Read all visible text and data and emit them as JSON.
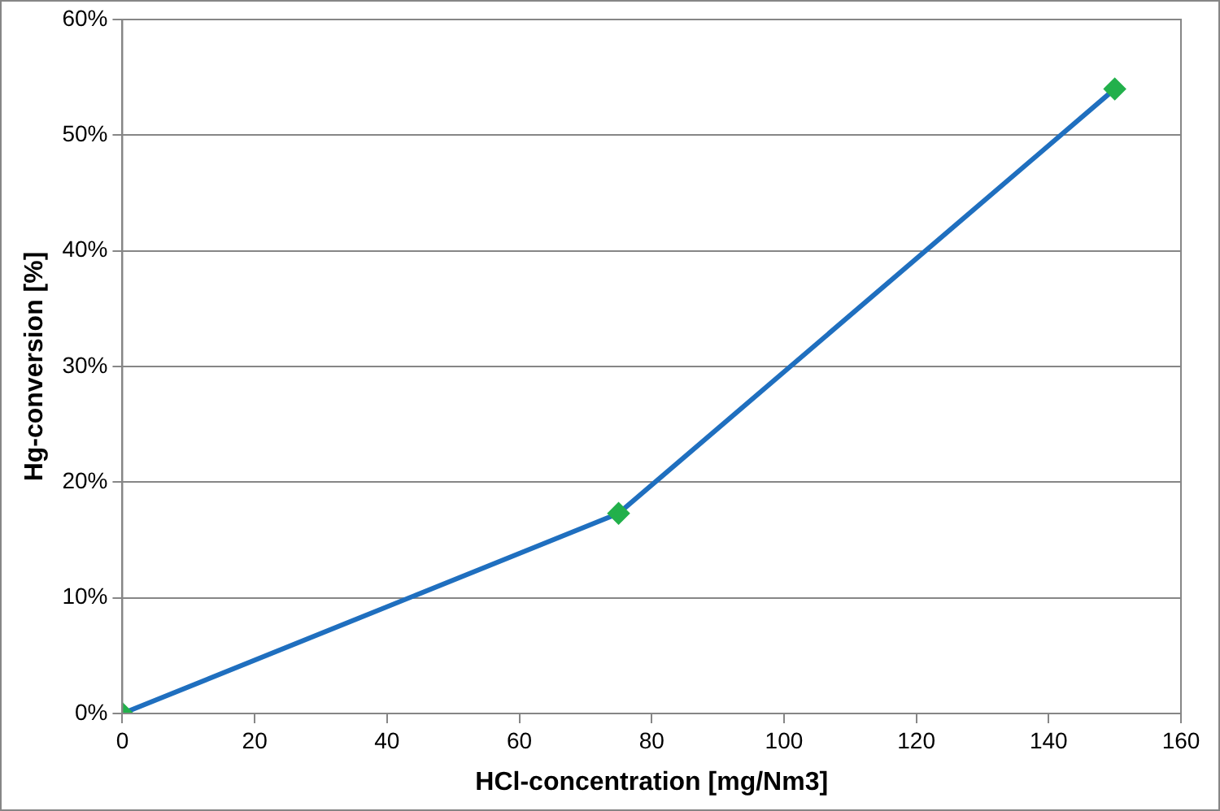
{
  "chart_data": {
    "type": "line",
    "xlabel": "HCl-concentration [mg/Nm3]",
    "ylabel": "Hg-conversion [%]",
    "x": [
      0,
      75,
      150
    ],
    "series": [
      {
        "color": "#1f6fbf",
        "colors": [
          "#22b04b",
          "#22b04b",
          "#22b04b"
        ],
        "values": [
          0,
          17.3,
          54
        ]
      }
    ],
    "xlim": [
      0,
      160
    ],
    "xticks": [
      0,
      20,
      40,
      60,
      80,
      100,
      120,
      140,
      160
    ],
    "ylim": [
      0,
      60
    ],
    "yticks": [
      {
        "value": 0,
        "label": "0%"
      },
      {
        "value": 10,
        "label": "10%"
      },
      {
        "value": 20,
        "label": "20%"
      },
      {
        "value": 30,
        "label": "30%"
      },
      {
        "value": 40,
        "label": "40%"
      },
      {
        "value": 50,
        "label": "50%"
      },
      {
        "value": 60,
        "label": "60%"
      }
    ],
    "grid": "y",
    "legend": false,
    "marker": "diamond",
    "line_style": "solid"
  }
}
